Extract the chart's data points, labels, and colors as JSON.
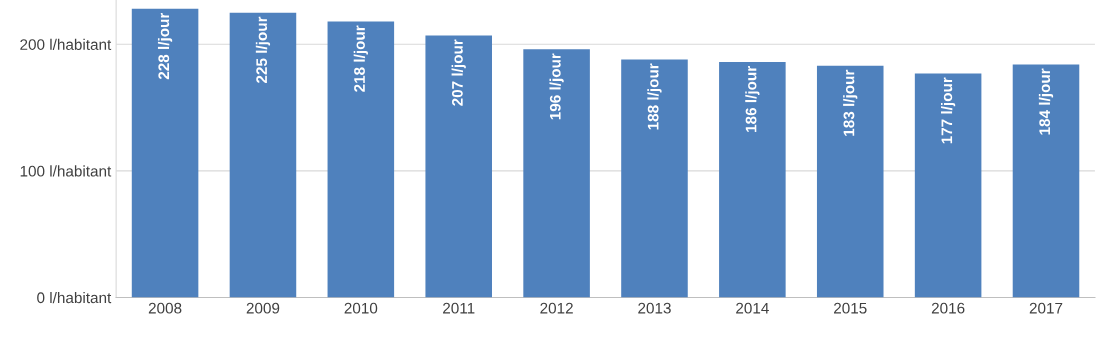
{
  "chart_data": {
    "type": "bar",
    "categories": [
      "2008",
      "2009",
      "2010",
      "2011",
      "2012",
      "2013",
      "2014",
      "2015",
      "2016",
      "2017"
    ],
    "values": [
      228,
      225,
      218,
      207,
      196,
      188,
      186,
      183,
      177,
      184
    ],
    "value_labels": [
      "228 l/jour",
      "225 l/jour",
      "218 l/jour",
      "207 l/jour",
      "196 l/jour",
      "188 l/jour",
      "186 l/jour",
      "183 l/jour",
      "177 l/jour",
      "184 l/jour"
    ],
    "color": "#4f81bd",
    "ylim": [
      0,
      235
    ],
    "yticks": [
      {
        "value": 0,
        "label": "0 l/habitant"
      },
      {
        "value": 100,
        "label": "100 l/habitant"
      },
      {
        "value": 200,
        "label": "200 l/habitant"
      }
    ],
    "grid": "y",
    "legend": false
  }
}
